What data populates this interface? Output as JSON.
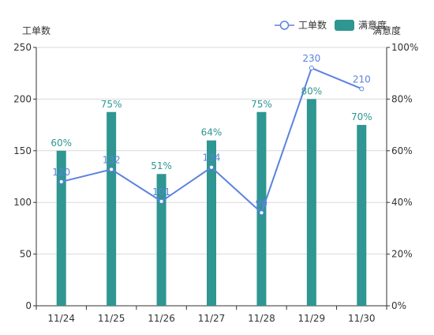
{
  "chart_data": {
    "type": "bar+line",
    "categories": [
      "11/24",
      "11/25",
      "11/26",
      "11/27",
      "11/28",
      "11/29",
      "11/30"
    ],
    "y_left": {
      "label": "工单数",
      "min": 0,
      "max": 250,
      "ticks": [
        0,
        50,
        100,
        150,
        200,
        250
      ]
    },
    "y_right": {
      "label": "满意度",
      "min": 0,
      "max": 100,
      "ticks": [
        "0%",
        "20%",
        "40%",
        "60%",
        "80%",
        "100%"
      ]
    },
    "series": [
      {
        "name": "工单数",
        "type": "line",
        "axis": "left",
        "color": "#5b82e0",
        "values": [
          120,
          132,
          101,
          134,
          90,
          230,
          210
        ],
        "labels": [
          "120",
          "132",
          "101",
          "134",
          "90",
          "230",
          "210"
        ]
      },
      {
        "name": "满意度",
        "type": "bar",
        "axis": "right",
        "color": "#2f9692",
        "values": [
          60,
          75,
          51,
          64,
          75,
          80,
          70
        ],
        "labels": [
          "60%",
          "75%",
          "51%",
          "64%",
          "75%",
          "80%",
          "70%"
        ]
      }
    ],
    "legend": {
      "position": "top-right"
    },
    "grid": true
  }
}
